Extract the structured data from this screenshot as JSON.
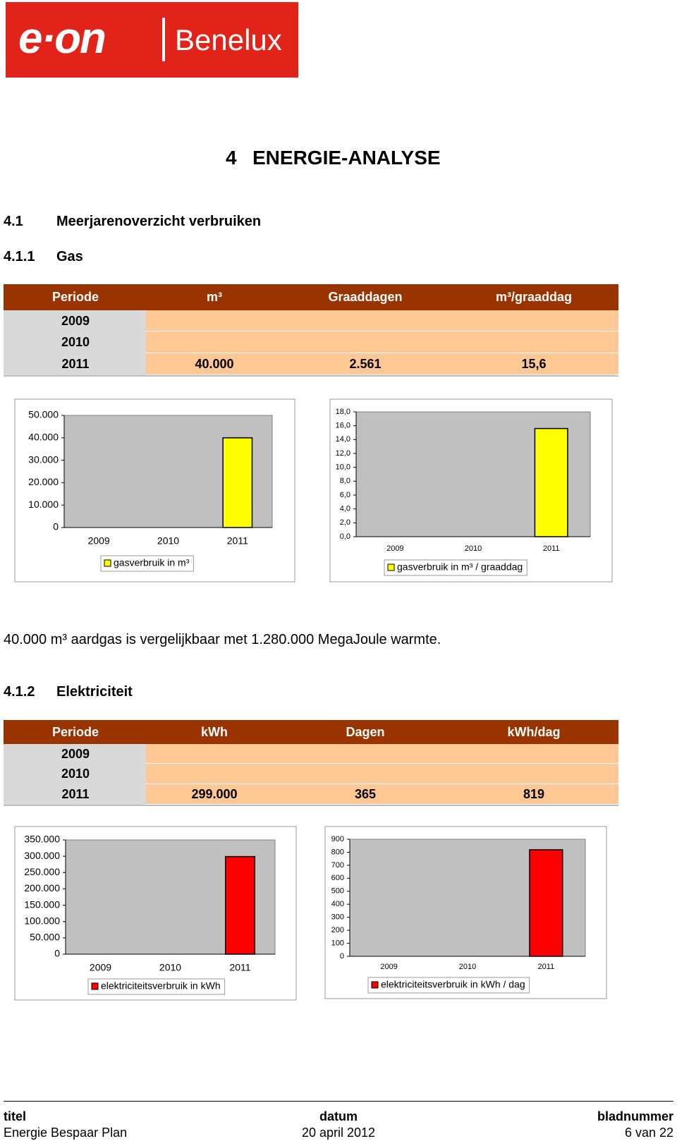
{
  "logo": {
    "brand": "e·on",
    "region": "Benelux"
  },
  "heading": {
    "number": "4",
    "title": "ENERGIE-ANALYSE"
  },
  "section": {
    "number": "4.1",
    "title": "Meerjarenoverzicht verbruiken"
  },
  "gas": {
    "number": "4.1.1",
    "title": "Gas",
    "table": {
      "headers": [
        "Periode",
        "m³",
        "Graaddagen",
        "m³/graaddag"
      ],
      "rows": [
        [
          "2009"
        ],
        [
          "2010"
        ],
        [
          "2011",
          "40.000",
          "2.561",
          "15,6"
        ]
      ]
    }
  },
  "note": "40.000 m³ aardgas is vergelijkbaar met 1.280.000 MegaJoule warmte.",
  "electricity": {
    "number": "4.1.2",
    "title": "Elektriciteit",
    "table": {
      "headers": [
        "Periode",
        "kWh",
        "Dagen",
        "kWh/dag"
      ],
      "rows": [
        [
          "2009"
        ],
        [
          "2010"
        ],
        [
          "2011",
          "299.000",
          "365",
          "819"
        ]
      ]
    }
  },
  "chart_data": [
    {
      "type": "bar",
      "categories": [
        "2009",
        "2010",
        "2011"
      ],
      "series": [
        {
          "name": "gasverbruik in m³",
          "color": "#ffff00",
          "values": [
            null,
            null,
            40000
          ]
        }
      ],
      "ylim": [
        0,
        50000
      ],
      "yticks": [
        0,
        {
          "value": 10000,
          "label": "10.000"
        },
        {
          "value": 20000,
          "label": "20.000"
        },
        {
          "value": 30000,
          "label": "30.000"
        },
        {
          "value": 40000,
          "label": "40.000"
        },
        {
          "value": 50000,
          "label": "50.000"
        }
      ]
    },
    {
      "type": "bar",
      "categories": [
        "2009",
        "2010",
        "2011"
      ],
      "series": [
        {
          "name": "gasverbruik in m³ / graaddag",
          "color": "#ffff00",
          "values": [
            null,
            null,
            15.6
          ]
        }
      ],
      "ylim": [
        0,
        18
      ],
      "yticks": [
        {
          "value": 0,
          "label": "0,0"
        },
        {
          "value": 2,
          "label": "2,0"
        },
        {
          "value": 4,
          "label": "4,0"
        },
        {
          "value": 6,
          "label": "6,0"
        },
        {
          "value": 8,
          "label": "8,0"
        },
        {
          "value": 10,
          "label": "10,0"
        },
        {
          "value": 12,
          "label": "12,0"
        },
        {
          "value": 14,
          "label": "14,0"
        },
        {
          "value": 16,
          "label": "16,0"
        },
        {
          "value": 18,
          "label": "18,0"
        }
      ]
    },
    {
      "type": "bar",
      "categories": [
        "2009",
        "2010",
        "2011"
      ],
      "series": [
        {
          "name": "elektriciteitsverbruik in kWh",
          "color": "#ff0000",
          "values": [
            null,
            null,
            299000
          ]
        }
      ],
      "ylim": [
        0,
        350000
      ],
      "yticks": [
        0,
        {
          "value": 50000,
          "label": "50.000"
        },
        {
          "value": 100000,
          "label": "100.000"
        },
        {
          "value": 150000,
          "label": "150.000"
        },
        {
          "value": 200000,
          "label": "200.000"
        },
        {
          "value": 250000,
          "label": "250.000"
        },
        {
          "value": 300000,
          "label": "300.000"
        },
        {
          "value": 350000,
          "label": "350.000"
        }
      ]
    },
    {
      "type": "bar",
      "categories": [
        "2009",
        "2010",
        "2011"
      ],
      "series": [
        {
          "name": "elektriciteitsverbruik in kWh / dag",
          "color": "#ff0000",
          "values": [
            null,
            null,
            819
          ]
        }
      ],
      "ylim": [
        0,
        900
      ],
      "yticks": [
        0,
        100,
        200,
        300,
        400,
        500,
        600,
        700,
        800,
        900
      ]
    }
  ],
  "footer": {
    "labels": [
      "titel",
      "datum",
      "bladnummer"
    ],
    "values": [
      "Energie Bespaar Plan",
      "20 april 2012",
      "6 van 22"
    ]
  }
}
